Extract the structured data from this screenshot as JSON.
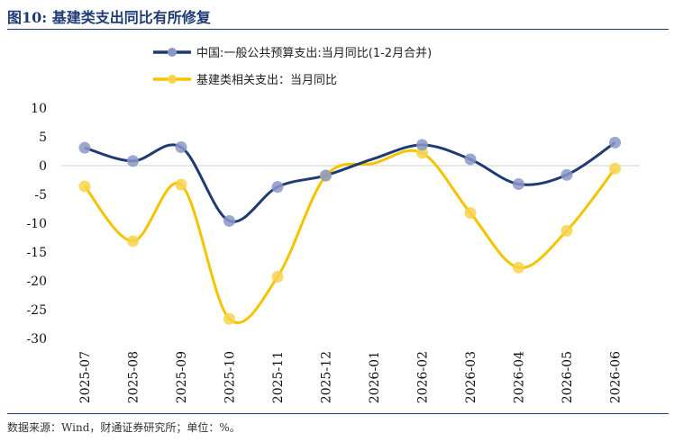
{
  "figure": {
    "title": "图10: 基建类支出同比有所修复",
    "source": "数据来源：Wind，财通证券研究所；单位：%。"
  },
  "chart_data": {
    "type": "line",
    "title": "",
    "xlabel": "",
    "ylabel": "",
    "ylim": [
      -30,
      10
    ],
    "yticks": [
      10,
      5,
      0,
      -5,
      -10,
      -15,
      -20,
      -25,
      -30
    ],
    "yticks_labels": [
      "10",
      "5",
      "0",
      "-5",
      "-10",
      "-15",
      "-20",
      "-25",
      "-30"
    ],
    "grid": false,
    "zero_line": true,
    "legend": "top-center",
    "x": [
      "2025-07",
      "2025-08",
      "2025-09",
      "2025-10",
      "2025-11",
      "2025-12",
      "2026-01",
      "2026-02",
      "2026-03",
      "2026-04",
      "2026-05",
      "2026-06"
    ],
    "series": [
      {
        "name": "中国:一般公共预算支出:当月同比(1-2月合并)",
        "color": "#1f3b73",
        "marker_color": "#8a98c7",
        "values": [
          3.1,
          0.8,
          3.2,
          -9.6,
          -3.7,
          -1.7,
          null,
          3.6,
          1.1,
          -3.2,
          -1.6,
          4.0
        ]
      },
      {
        "name": "基建类相关支出：当月同比",
        "color": "#f5c400",
        "marker_color": "#f7d44c",
        "values": [
          -3.6,
          -13.1,
          -3.3,
          -26.6,
          -19.3,
          -1.8,
          null,
          2.2,
          -8.2,
          -17.7,
          -11.3,
          -0.5
        ]
      }
    ]
  }
}
